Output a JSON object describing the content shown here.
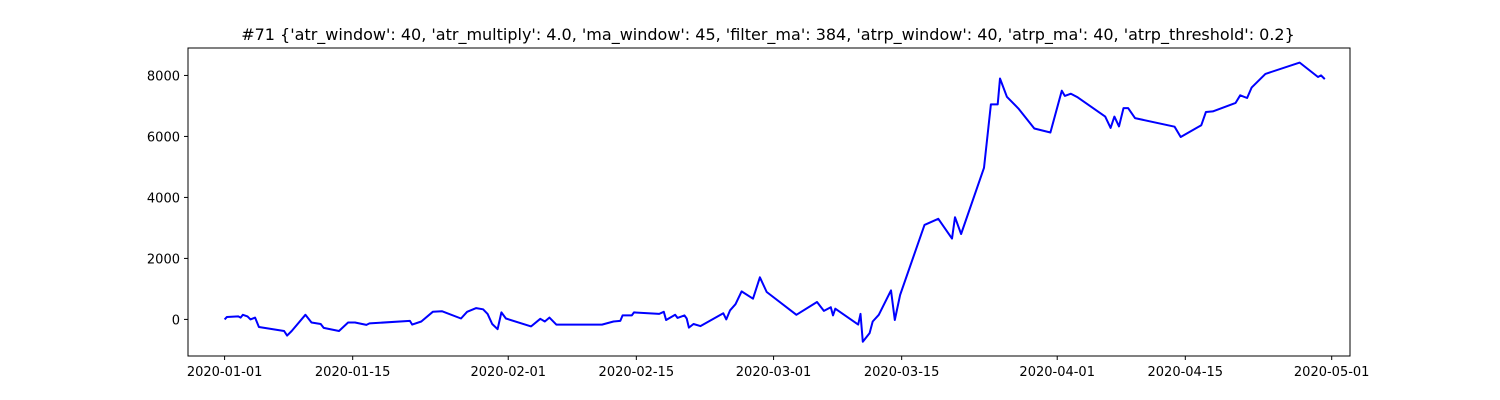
{
  "chart_data": {
    "type": "line",
    "title": "#71 {'atr_window': 40, 'atr_multiply': 4.0, 'ma_window': 45, 'filter_ma': 384, 'atrp_window': 40, 'atrp_ma': 40, 'atrp_threshold': 0.2}",
    "xlabel": "",
    "ylabel": "",
    "x_axis": "date",
    "xlim": [
      "2019-12-28",
      "2020-05-03"
    ],
    "ylim": [
      -1200,
      8900
    ],
    "x_ticks": [
      "2020-01-01",
      "2020-01-15",
      "2020-02-01",
      "2020-02-15",
      "2020-03-01",
      "2020-03-15",
      "2020-04-01",
      "2020-04-15",
      "2020-05-01"
    ],
    "y_ticks": [
      0,
      2000,
      4000,
      6000,
      8000
    ],
    "grid": false,
    "legend": "none",
    "series": [
      {
        "color": "#0000ff",
        "points": [
          [
            "2020-01-01 00:00",
            0
          ],
          [
            "2020-01-01 06:00",
            80
          ],
          [
            "2020-01-02 12:00",
            100
          ],
          [
            "2020-01-02 18:00",
            60
          ],
          [
            "2020-01-03 00:00",
            150
          ],
          [
            "2020-01-03 12:00",
            100
          ],
          [
            "2020-01-03 20:00",
            0
          ],
          [
            "2020-01-04 08:00",
            60
          ],
          [
            "2020-01-04 18:00",
            -250
          ],
          [
            "2020-01-07 12:00",
            -380
          ],
          [
            "2020-01-07 20:00",
            -530
          ],
          [
            "2020-01-08 08:00",
            -380
          ],
          [
            "2020-01-09 20:00",
            150
          ],
          [
            "2020-01-10 12:00",
            -100
          ],
          [
            "2020-01-11 12:00",
            -150
          ],
          [
            "2020-01-11 20:00",
            -280
          ],
          [
            "2020-01-13 12:00",
            -380
          ],
          [
            "2020-01-14 12:00",
            -100
          ],
          [
            "2020-01-15 06:00",
            -100
          ],
          [
            "2020-01-16 12:00",
            -180
          ],
          [
            "2020-01-16 20:00",
            -130
          ],
          [
            "2020-01-21 06:00",
            -50
          ],
          [
            "2020-01-21 12:00",
            -170
          ],
          [
            "2020-01-22 12:00",
            -70
          ],
          [
            "2020-01-23 18:00",
            250
          ],
          [
            "2020-01-24 18:00",
            270
          ],
          [
            "2020-01-26 20:00",
            30
          ],
          [
            "2020-01-27 12:00",
            250
          ],
          [
            "2020-01-28 12:00",
            370
          ],
          [
            "2020-01-29 06:00",
            330
          ],
          [
            "2020-01-29 18:00",
            180
          ],
          [
            "2020-01-30 06:00",
            -150
          ],
          [
            "2020-01-30 20:00",
            -320
          ],
          [
            "2020-01-31 06:00",
            230
          ],
          [
            "2020-01-31 18:00",
            30
          ],
          [
            "2020-02-03 12:00",
            -230
          ],
          [
            "2020-02-04 12:00",
            20
          ],
          [
            "2020-02-05 00:00",
            -70
          ],
          [
            "2020-02-05 12:00",
            60
          ],
          [
            "2020-02-06 06:00",
            -170
          ],
          [
            "2020-02-11 06:00",
            -170
          ],
          [
            "2020-02-12 12:00",
            -70
          ],
          [
            "2020-02-13 06:00",
            -50
          ],
          [
            "2020-02-13 12:00",
            130
          ],
          [
            "2020-02-14 12:00",
            130
          ],
          [
            "2020-02-14 18:00",
            230
          ],
          [
            "2020-02-17 12:00",
            180
          ],
          [
            "2020-02-18 00:00",
            250
          ],
          [
            "2020-02-18 06:00",
            -20
          ],
          [
            "2020-02-19 06:00",
            150
          ],
          [
            "2020-02-19 12:00",
            50
          ],
          [
            "2020-02-20 06:00",
            130
          ],
          [
            "2020-02-20 12:00",
            30
          ],
          [
            "2020-02-20 18:00",
            -270
          ],
          [
            "2020-02-21 06:00",
            -150
          ],
          [
            "2020-02-22 00:00",
            -220
          ],
          [
            "2020-02-24 12:00",
            200
          ],
          [
            "2020-02-24 20:00",
            0
          ],
          [
            "2020-02-25 06:00",
            300
          ],
          [
            "2020-02-25 20:00",
            500
          ],
          [
            "2020-02-26 12:00",
            920
          ],
          [
            "2020-02-27 18:00",
            680
          ],
          [
            "2020-02-28 12:00",
            1380
          ],
          [
            "2020-02-29 06:00",
            900
          ],
          [
            "2020-03-03 12:00",
            150
          ],
          [
            "2020-03-05 18:00",
            570
          ],
          [
            "2020-03-06 12:00",
            280
          ],
          [
            "2020-03-07 06:00",
            400
          ],
          [
            "2020-03-07 12:00",
            130
          ],
          [
            "2020-03-07 18:00",
            350
          ],
          [
            "2020-03-10 06:00",
            -170
          ],
          [
            "2020-03-10 12:00",
            180
          ],
          [
            "2020-03-10 18:00",
            -730
          ],
          [
            "2020-03-11 12:00",
            -450
          ],
          [
            "2020-03-11 20:00",
            -70
          ],
          [
            "2020-03-12 12:00",
            150
          ],
          [
            "2020-03-13 20:00",
            950
          ],
          [
            "2020-03-14 06:00",
            -20
          ],
          [
            "2020-03-14 20:00",
            800
          ],
          [
            "2020-03-17 12:00",
            3100
          ],
          [
            "2020-03-19 00:00",
            3300
          ],
          [
            "2020-03-20 12:00",
            2650
          ],
          [
            "2020-03-20 20:00",
            3350
          ],
          [
            "2020-03-21 12:00",
            2800
          ],
          [
            "2020-03-24 00:00",
            4970
          ],
          [
            "2020-03-24 18:00",
            7050
          ],
          [
            "2020-03-25 12:00",
            7050
          ],
          [
            "2020-03-25 18:00",
            7900
          ],
          [
            "2020-03-26 12:00",
            7300
          ],
          [
            "2020-03-27 18:00",
            6920
          ],
          [
            "2020-03-29 12:00",
            6260
          ],
          [
            "2020-03-31 06:00",
            6130
          ],
          [
            "2020-04-01 12:00",
            7500
          ],
          [
            "2020-04-01 20:00",
            7330
          ],
          [
            "2020-04-02 12:00",
            7400
          ],
          [
            "2020-04-03 06:00",
            7280
          ],
          [
            "2020-04-06 06:00",
            6650
          ],
          [
            "2020-04-06 20:00",
            6280
          ],
          [
            "2020-04-07 06:00",
            6650
          ],
          [
            "2020-04-07 18:00",
            6330
          ],
          [
            "2020-04-08 06:00",
            6930
          ],
          [
            "2020-04-08 18:00",
            6930
          ],
          [
            "2020-04-09 12:00",
            6600
          ],
          [
            "2020-04-13 20:00",
            6320
          ],
          [
            "2020-04-14 12:00",
            5980
          ],
          [
            "2020-04-16 18:00",
            6370
          ],
          [
            "2020-04-17 06:00",
            6800
          ],
          [
            "2020-04-18 00:00",
            6820
          ],
          [
            "2020-04-20 12:00",
            7100
          ],
          [
            "2020-04-21 00:00",
            7350
          ],
          [
            "2020-04-21 18:00",
            7260
          ],
          [
            "2020-04-22 06:00",
            7600
          ],
          [
            "2020-04-23 18:00",
            8050
          ],
          [
            "2020-04-27 12:00",
            8420
          ],
          [
            "2020-04-29 12:00",
            7950
          ],
          [
            "2020-04-29 20:00",
            8000
          ],
          [
            "2020-04-30 06:00",
            7880
          ]
        ]
      }
    ]
  }
}
